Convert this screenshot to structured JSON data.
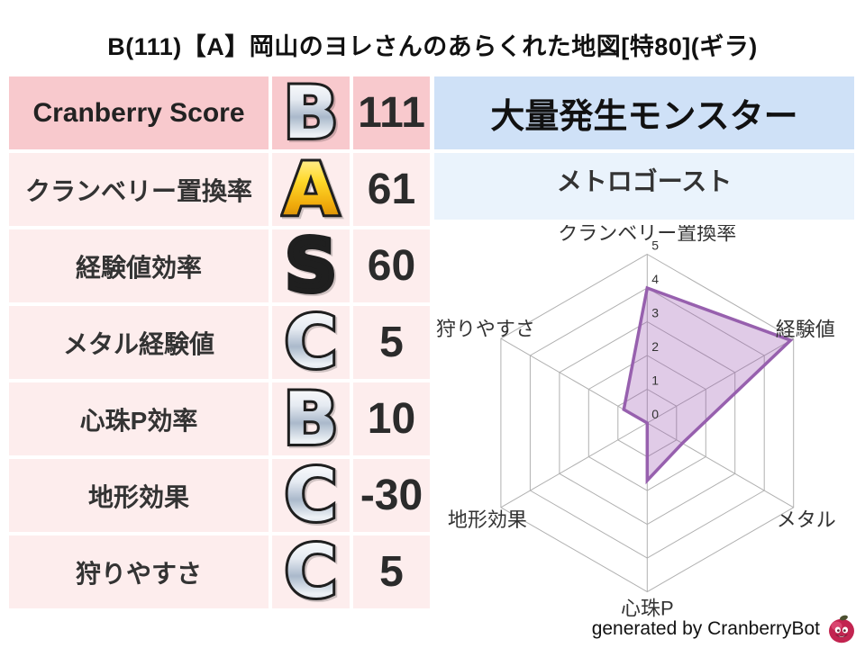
{
  "title": "B(111)【A】岡山のヨレさんのあらくれた地図[特80](ギラ)",
  "table": {
    "rows": [
      {
        "label": "Cranberry Score",
        "grade": "B",
        "grade_style": "silver",
        "value": "111"
      },
      {
        "label": "クランベリー置換率",
        "grade": "A",
        "grade_style": "gold",
        "value": "61"
      },
      {
        "label": "経験値効率",
        "grade": "S",
        "grade_style": "rainbow",
        "value": "60"
      },
      {
        "label": "メタル経験値",
        "grade": "C",
        "grade_style": "silver",
        "value": "5"
      },
      {
        "label": "心珠P効率",
        "grade": "B",
        "grade_style": "silver",
        "value": "10"
      },
      {
        "label": "地形効果",
        "grade": "C",
        "grade_style": "silver",
        "value": "-30"
      },
      {
        "label": "狩りやすさ",
        "grade": "C",
        "grade_style": "silver",
        "value": "5"
      }
    ]
  },
  "monster": {
    "header": "大量発生モンスター",
    "name": "メトロゴースト"
  },
  "credit": {
    "text": "generated by CranberryBot",
    "icon": "cranberry-bot-face"
  },
  "colors": {
    "table_header_pink": "#f8c9cd",
    "table_row_pink": "#fdeded",
    "monster_header_blue": "#cfe1f7",
    "monster_row_blue": "#eaf3fc",
    "radar_line": "#9760ae",
    "radar_fill": "rgba(152,84,176,0.30)",
    "radar_grid": "#b0b0b0"
  },
  "chart_data": {
    "type": "radar",
    "axes": [
      "クランベリー置換率",
      "経験値",
      "メタル",
      "心珠P",
      "地形効果",
      "狩りやすさ"
    ],
    "values": [
      4.0,
      4.9,
      1.2,
      1.7,
      0,
      0.8
    ],
    "scale_min": 0,
    "scale_max": 5,
    "ticks": [
      0,
      1,
      2,
      3,
      4,
      5
    ],
    "grid": true,
    "legend": false,
    "line_color": "#9760ae",
    "fill_color": "rgba(152,84,176,0.30)",
    "grid_color": "#b0b0b0"
  }
}
